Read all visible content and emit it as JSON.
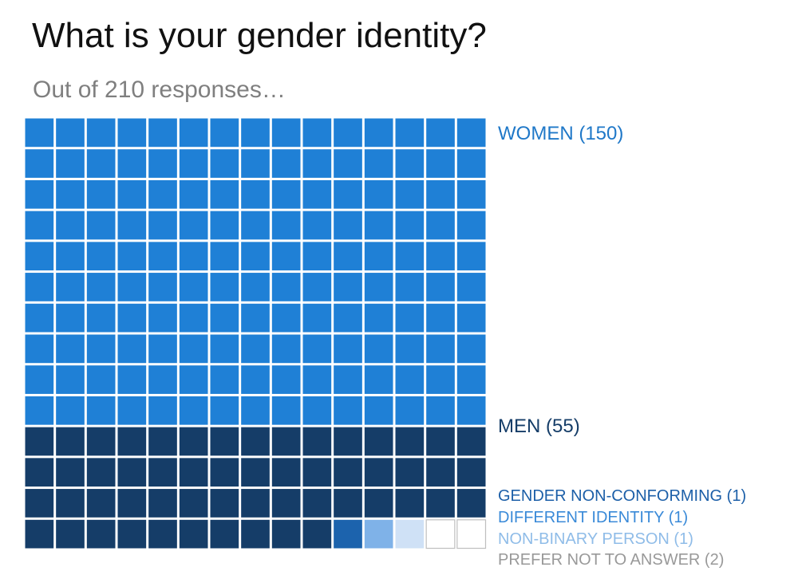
{
  "title": "What is your gender identity?",
  "subtitle": "Out of 210 responses…",
  "chart_data": {
    "type": "waffle",
    "total": 210,
    "grid": {
      "columns": 15,
      "rows": 14
    },
    "fill_order": "row-major from top-left",
    "categories": [
      {
        "name": "WOMEN",
        "label": "WOMEN (150)",
        "count": 150,
        "color": "#1f80d6",
        "label_color": "#1f78c8"
      },
      {
        "name": "MEN",
        "label": "MEN (55)",
        "count": 55,
        "color": "#153d68",
        "label_color": "#153d68"
      },
      {
        "name": "GENDER NON-CONFORMING",
        "label": "GENDER NON-CONFORMING (1)",
        "count": 1,
        "color": "#1c63ad",
        "label_color": "#1c5fa8"
      },
      {
        "name": "DIFFERENT IDENTITY",
        "label": "DIFFERENT IDENTITY (1)",
        "count": 1,
        "color": "#7fb2e8",
        "label_color": "#3a8ad8"
      },
      {
        "name": "NON-BINARY PERSON",
        "label": "NON-BINARY PERSON (1)",
        "count": 1,
        "color": "#cfe1f6",
        "label_color": "#8fbce8"
      },
      {
        "name": "PREFER NOT TO ANSWER",
        "label": "PREFER NOT TO ANSWER  (2)",
        "count": 2,
        "color": "#ffffff",
        "label_color": "#999999",
        "outlined": true
      }
    ]
  }
}
